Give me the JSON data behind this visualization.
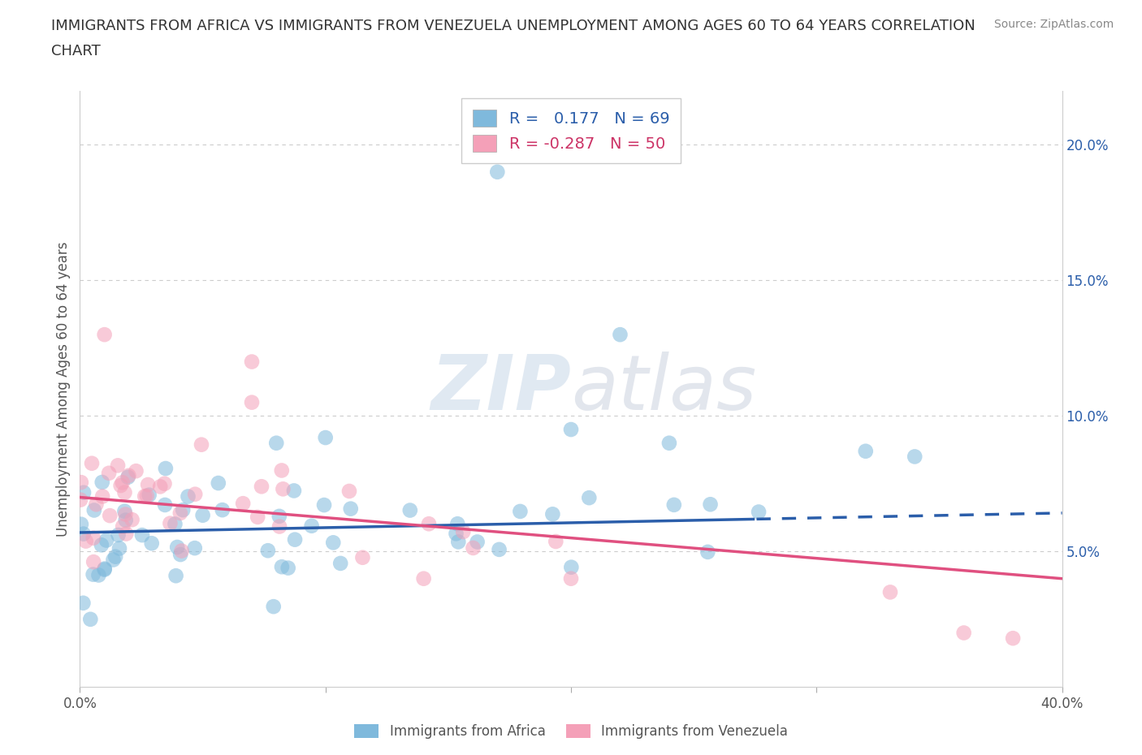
{
  "title_line1": "IMMIGRANTS FROM AFRICA VS IMMIGRANTS FROM VENEZUELA UNEMPLOYMENT AMONG AGES 60 TO 64 YEARS CORRELATION",
  "title_line2": "CHART",
  "source": "Source: ZipAtlas.com",
  "ylabel": "Unemployment Among Ages 60 to 64 years",
  "xlim": [
    0.0,
    0.4
  ],
  "ylim": [
    0.0,
    0.22
  ],
  "xticks": [
    0.0,
    0.1,
    0.2,
    0.3,
    0.4
  ],
  "xticklabels": [
    "0.0%",
    "",
    "",
    "",
    "40.0%"
  ],
  "yticks_right": [
    0.05,
    0.1,
    0.15,
    0.2
  ],
  "ytick_labels_right": [
    "5.0%",
    "10.0%",
    "15.0%",
    "20.0%"
  ],
  "africa_scatter_color": "#7FB9DC",
  "venezuela_scatter_color": "#F4A0B8",
  "africa_line_color": "#2B5EAA",
  "venezuela_line_color": "#E05080",
  "R_africa": 0.177,
  "N_africa": 69,
  "R_venezuela": -0.287,
  "N_venezuela": 50,
  "watermark_zip": "ZIP",
  "watermark_atlas": "atlas",
  "background_color": "#FFFFFF",
  "grid_color": "#CCCCCC",
  "legend_africa_text_color": "#2B5EAA",
  "legend_venezuela_text_color": "#CC3366",
  "title_fontsize": 13,
  "source_fontsize": 10,
  "tick_fontsize": 12,
  "ylabel_fontsize": 12,
  "legend_fontsize": 14,
  "africa_line_dash_start": 0.275,
  "trend_africa_slope": 0.018,
  "trend_africa_intercept": 0.057,
  "trend_venezuela_slope": -0.075,
  "trend_venezuela_intercept": 0.07
}
